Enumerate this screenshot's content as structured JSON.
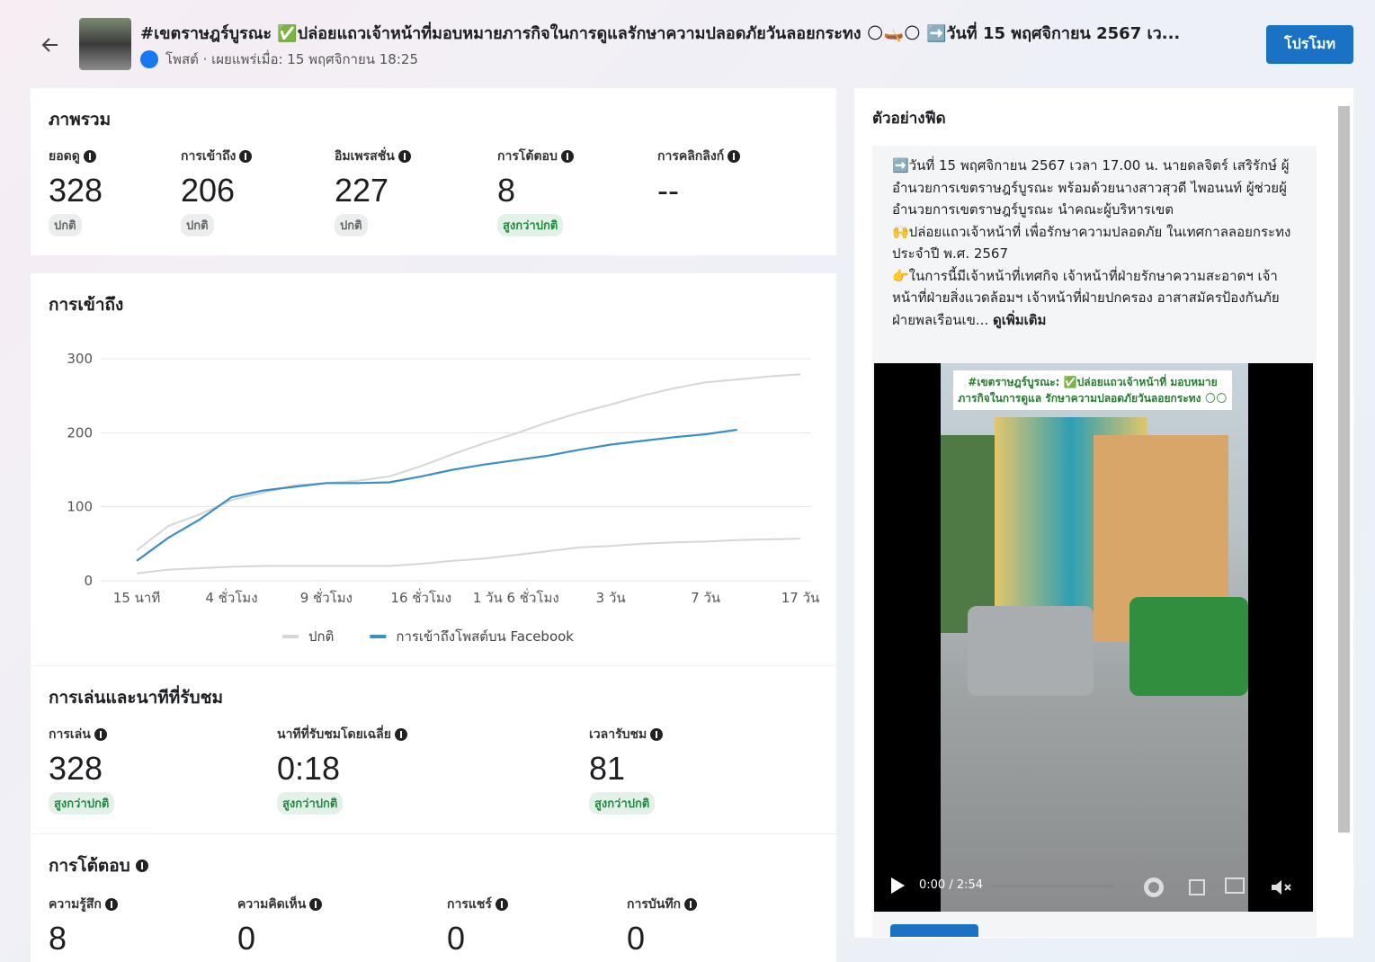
{
  "header": {
    "title": "#เขตราษฎร์บูรณะ ✅ปล่อยแถวเจ้าหน้าที่มอบหมายภารกิจในการดูแลรักษาความปลอดภัยวันลอยกระทง 🌕🛶🌕 ➡️วันที่ 15 พฤศจิกายน 2567 เว...",
    "subtitle": "โพสต์ · เผยแพร่เมื่อ: 15 พฤศจิกายน 18:25",
    "button": "โปรโมท"
  },
  "overview": {
    "title": "ภาพรวม",
    "metrics": [
      {
        "label": "ยอดดู",
        "value": "328",
        "badge": "ปกติ",
        "badge_color": "#65676b"
      },
      {
        "label": "การเข้าถึง",
        "value": "206",
        "badge": "ปกติ",
        "badge_color": "#65676b"
      },
      {
        "label": "อิมเพรสชั่น",
        "value": "227",
        "badge": "ปกติ",
        "badge_color": "#65676b"
      },
      {
        "label": "การโต้ตอบ",
        "value": "8",
        "badge": "สูงกว่าปกติ",
        "badge_color": "#1e8e3e"
      },
      {
        "label": "การคลิกลิงก์",
        "value": "--"
      }
    ]
  },
  "chart_data": {
    "type": "line",
    "title": "การเข้าถึง",
    "categories": [
      "15 นาที",
      null,
      null,
      "4 ชั่วโมง",
      null,
      null,
      "9 ชั่วโมง",
      null,
      null,
      "16 ชั่วโมง",
      null,
      null,
      "1 วัน 6 ชั่วโมง",
      null,
      null,
      "3 วัน",
      null,
      null,
      "7 วัน",
      null,
      null,
      "17 วัน"
    ],
    "series": [
      {
        "name": "ปกติ",
        "color": "#d4d6da",
        "values": [
          41,
          74,
          90,
          109,
          119,
          129,
          132,
          135,
          141,
          155,
          171,
          186,
          199,
          214,
          227,
          238,
          250,
          260,
          268,
          272,
          276,
          279
        ],
        "low": [
          10,
          15,
          17,
          19,
          20,
          20,
          20,
          20,
          20,
          23,
          27,
          30,
          35,
          40,
          45,
          47,
          50,
          52,
          53,
          55,
          56,
          57
        ]
      },
      {
        "name": "การเข้าถึงโพสต์บน Facebook",
        "color": "#3b8fc4",
        "values": [
          27,
          58,
          83,
          113,
          122,
          127,
          132,
          132,
          133,
          141,
          150,
          157,
          163,
          169,
          177,
          184,
          189,
          194,
          198,
          204,
          null,
          null
        ]
      }
    ],
    "ylim": [
      0,
      300
    ],
    "yticks": [
      0,
      100,
      200,
      300
    ],
    "grid": true,
    "legend": "bottom"
  },
  "playback": {
    "title": "การเล่นและนาทีที่รับชม",
    "metrics": [
      {
        "label": "การเล่น",
        "value": "328",
        "badge": "สูงกว่าปกติ",
        "badge_color": "#1e8e3e"
      },
      {
        "label": "นาทีที่รับชมโดยเฉลี่ย",
        "value": "0:18",
        "badge": "สูงกว่าปกติ",
        "badge_color": "#1e8e3e"
      },
      {
        "label": "เวลารับชม",
        "value": "81",
        "badge": "สูงกว่าปกติ",
        "badge_color": "#1e8e3e"
      }
    ]
  },
  "engagement": {
    "title": "การโต้ตอบ",
    "metrics": [
      {
        "label": "ความรู้สึก",
        "value": "8"
      },
      {
        "label": "ความคิดเห็น",
        "value": "0"
      },
      {
        "label": "การแชร์",
        "value": "0"
      },
      {
        "label": "การบันทึก",
        "value": "0"
      }
    ]
  },
  "preview": {
    "title": "ตัวอย่างฟีด",
    "paragraphs": [
      "➡️วันที่ 15 พฤศจิกายน 2567 เวลา 17.00 น. นายดลจิตร์ เสริรักษ์ ผู้อำนวยการเขตราษฎร์บูรณะ พร้อมด้วยนางสาวสุวดี ไพอนนท์ ผู้ช่วยผู้อำนวยการเขตราษฎร์บูรณะ นำคณะผู้บริหารเขต",
      "🙌ปล่อยแถวเจ้าหน้าที่ เพื่อรักษาความปลอดภัย ในเทศกาลลอยกระทง ประจำปี พ.ศ. 2567",
      "👉ในการนี้มีเจ้าหน้าที่เทศกิจ เจ้าหน้าที่ฝ่ายรักษาความสะอาดฯ เจ้าหน้าที่ฝ่ายสิ่งแวดล้อมฯ เจ้าหน้าที่ฝ่ายปกครอง อาสาสมัครป้องกันภัยฝ่ายพลเรือนเข..."
    ],
    "see_more": "ดูเพิ่มเติม",
    "video_caption": "#เขตราษฎร์บูรณะ: ✅ปล่อยแถวเจ้าหน้าที่ มอบหมายภารกิจในการดูแล รักษาความปลอดภัยวันลอยกระทง 🌕🌕",
    "video_time": "0:00 / 2:54"
  }
}
